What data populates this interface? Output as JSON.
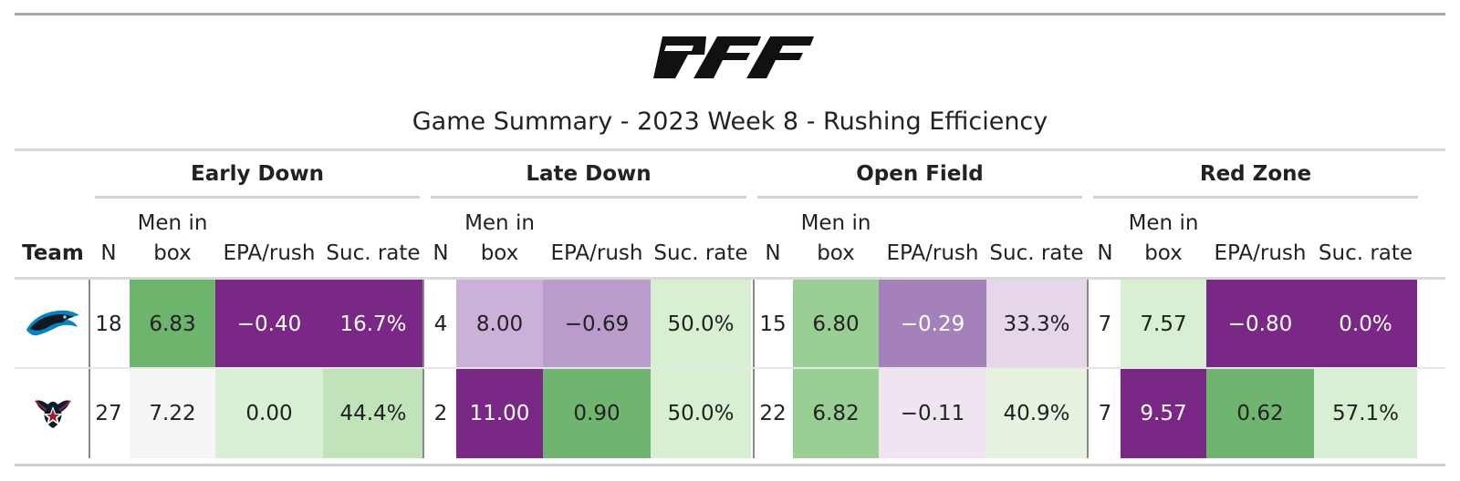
{
  "header": {
    "logo_text": "PFF",
    "title": "Game Summary - 2023 Week 8 - Rushing Efficiency"
  },
  "groups": [
    "Early Down",
    "Late Down",
    "Open Field",
    "Red Zone"
  ],
  "columns": {
    "team": "Team",
    "n": "N",
    "men_line1": "Men in",
    "men_line2": "box",
    "epa": "EPA/rush",
    "suc": "Suc. rate"
  },
  "teams": [
    {
      "logo": "panthers-logo-icon",
      "name": "Carolina Panthers"
    },
    {
      "logo": "texans-logo-icon",
      "name": "Houston Texans"
    }
  ],
  "rows": [
    [
      {
        "n": "18",
        "men": "6.83",
        "epa": "−0.40",
        "suc": "16.7%"
      },
      {
        "n": "4",
        "men": "8.00",
        "epa": "−0.69",
        "suc": "50.0%"
      },
      {
        "n": "15",
        "men": "6.80",
        "epa": "−0.29",
        "suc": "33.3%"
      },
      {
        "n": "7",
        "men": "7.57",
        "epa": "−0.80",
        "suc": "0.0%"
      }
    ],
    [
      {
        "n": "27",
        "men": "7.22",
        "epa": "0.00",
        "suc": "44.4%"
      },
      {
        "n": "2",
        "men": "11.00",
        "epa": "0.90",
        "suc": "50.0%"
      },
      {
        "n": "22",
        "men": "6.82",
        "epa": "−0.11",
        "suc": "40.9%"
      },
      {
        "n": "7",
        "men": "9.57",
        "epa": "0.62",
        "suc": "57.1%"
      }
    ]
  ],
  "colors": {
    "row0": [
      {
        "men": "#6db46d",
        "epa": "#7a2885",
        "suc": "#7a2885"
      },
      {
        "men": "#cbb0d9",
        "epa": "#bb9bcb",
        "suc": "#d8efd2"
      },
      {
        "men": "#99cf94",
        "epa": "#a581bb",
        "suc": "#e6d6ea"
      },
      {
        "men": "#d9efd3",
        "epa": "#7a2885",
        "suc": "#7a2885"
      }
    ],
    "row1": [
      {
        "men": "#f5f5f5",
        "epa": "#d9f0d4",
        "suc": "#c0e3ba"
      },
      {
        "men": "#7a2885",
        "epa": "#70b56f",
        "suc": "#d8efd2"
      },
      {
        "men": "#99cf94",
        "epa": "#efe5f1",
        "suc": "#e6f3e1"
      },
      {
        "men": "#7a2885",
        "epa": "#70b56f",
        "suc": "#d9efd3"
      }
    ]
  }
}
